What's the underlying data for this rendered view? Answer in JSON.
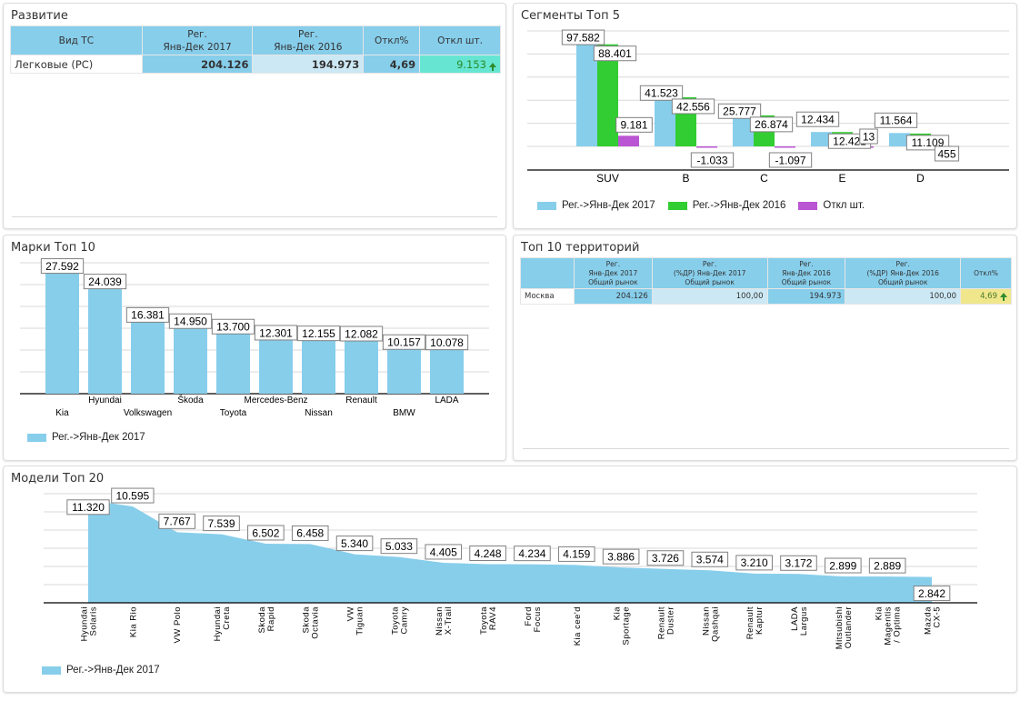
{
  "colors": {
    "series_2017": "#87ceeb",
    "series_2016": "#32cd32",
    "series_diff": "#ba55d3",
    "gridline": "#d8d8d8",
    "axis": "#000000",
    "label_border": "#808080"
  },
  "development": {
    "title": "Развитие",
    "headers": [
      "Вид ТС",
      "Рег.\nЯнв-Дек 2017",
      "Рег.\nЯнв-Дек 2016",
      "Откл%",
      "Откл шт."
    ],
    "rows": [
      {
        "type": "Легковые (РС)",
        "reg_2017": "204.126",
        "reg_2016": "194.973",
        "diff_pct": "4,69",
        "diff_units": "9.153",
        "trend": "up-arrow-icon"
      }
    ]
  },
  "territories": {
    "title": "Топ 10 территорий",
    "headers": [
      "",
      "Рег.\nЯнв-Дек 2017\nОбщий рынок",
      "Рег.\n(%ДР) Янв-Дек 2017\nОбщий рынок",
      "Рег.\nЯнв-Дек 2016\nОбщий рынок",
      "Рег.\n(%ДР) Янв-Дек 2016\nОбщий рынок",
      "Откл%"
    ],
    "rows": [
      {
        "territory": "Москва",
        "reg_2017": "204.126",
        "share_2017": "100,00",
        "reg_2016": "194.973",
        "share_2016": "100,00",
        "diff_pct": "4,69",
        "trend": "up-arrow-icon"
      }
    ]
  },
  "chart_data": [
    {
      "id": "segments",
      "type": "bar",
      "title": "Сегменты Топ 5",
      "categories": [
        "SUV",
        "B",
        "C",
        "E",
        "D"
      ],
      "series": [
        {
          "name": "Рег.->Янв-Дек 2017",
          "values": [
            97582,
            41523,
            25777,
            12434,
            11564
          ],
          "labels": [
            "97.582",
            "41.523",
            "25.777",
            "12.434",
            "11.564"
          ]
        },
        {
          "name": "Рег.->Янв-Дек 2016",
          "values": [
            88401,
            42556,
            26874,
            12421,
            11109
          ],
          "labels": [
            "88.401",
            "42.556",
            "26.874",
            "12.421",
            "11.109"
          ]
        },
        {
          "name": "Откл шт.",
          "values": [
            9181,
            -1033,
            -1097,
            13,
            455
          ],
          "labels": [
            "9.181",
            "-1.033",
            "-1.097",
            "13",
            "455"
          ]
        }
      ],
      "ylim": [
        -20000,
        100000
      ],
      "grid": true,
      "legend": "bottom-left",
      "xlabel": "",
      "ylabel": ""
    },
    {
      "id": "brands",
      "type": "bar",
      "title": "Марки Топ 10",
      "categories": [
        "Kia",
        "Hyundai",
        "Volkswagen",
        "Škoda",
        "Toyota",
        "Mercedes-Benz",
        "Nissan",
        "Renault",
        "BMW",
        "LADA"
      ],
      "series": [
        {
          "name": "Рег.->Янв-Дек 2017",
          "values": [
            27592,
            24039,
            16381,
            14950,
            13700,
            12301,
            12155,
            12082,
            10157,
            10078
          ],
          "labels": [
            "27.592",
            "24.039",
            "16.381",
            "14.950",
            "13.700",
            "12.301",
            "12.155",
            "12.082",
            "10.157",
            "10.078"
          ]
        }
      ],
      "ylim": [
        0,
        30000
      ],
      "grid": true,
      "legend": "bottom-left",
      "xlabel": "",
      "ylabel": ""
    },
    {
      "id": "models",
      "type": "area",
      "title": "Модели Топ 20",
      "categories": [
        "Hyundai\nSolaris",
        "Kia Rio",
        "VW Polo",
        "Hyundai\nCreta",
        "Skoda\nRapid",
        "Skoda\nOctavia",
        "VW\nTiguan",
        "Toyota\nCamry",
        "Nissan\nX-Trail",
        "Toyota\nRAV4",
        "Ford\nFocus",
        "Kia cee'd",
        "Kia\nSportage",
        "Renault\nDuster",
        "Nissan\nQashqai",
        "Renault\nKaptur",
        "LADA\nLargus",
        "Mitsubishi\nOutlander",
        "Kia\nMagentis\n/ Optima",
        "Mazda\nCX-5"
      ],
      "series": [
        {
          "name": "Рег.->Янв-Дек 2017",
          "values": [
            11320,
            10595,
            7767,
            7539,
            6502,
            6458,
            5340,
            5033,
            4405,
            4248,
            4234,
            4159,
            3886,
            3726,
            3574,
            3210,
            3172,
            2899,
            2889,
            2842
          ],
          "labels": [
            "11.320",
            "10.595",
            "7.767",
            "7.539",
            "6.502",
            "6.458",
            "5.340",
            "5.033",
            "4.405",
            "4.248",
            "4.234",
            "4.159",
            "3.886",
            "3.726",
            "3.574",
            "3.210",
            "3.172",
            "2.899",
            "2.889",
            "2.842"
          ]
        }
      ],
      "ylim": [
        0,
        12000
      ],
      "grid": true,
      "legend": "bottom-left",
      "xlabel": "",
      "ylabel": ""
    }
  ]
}
